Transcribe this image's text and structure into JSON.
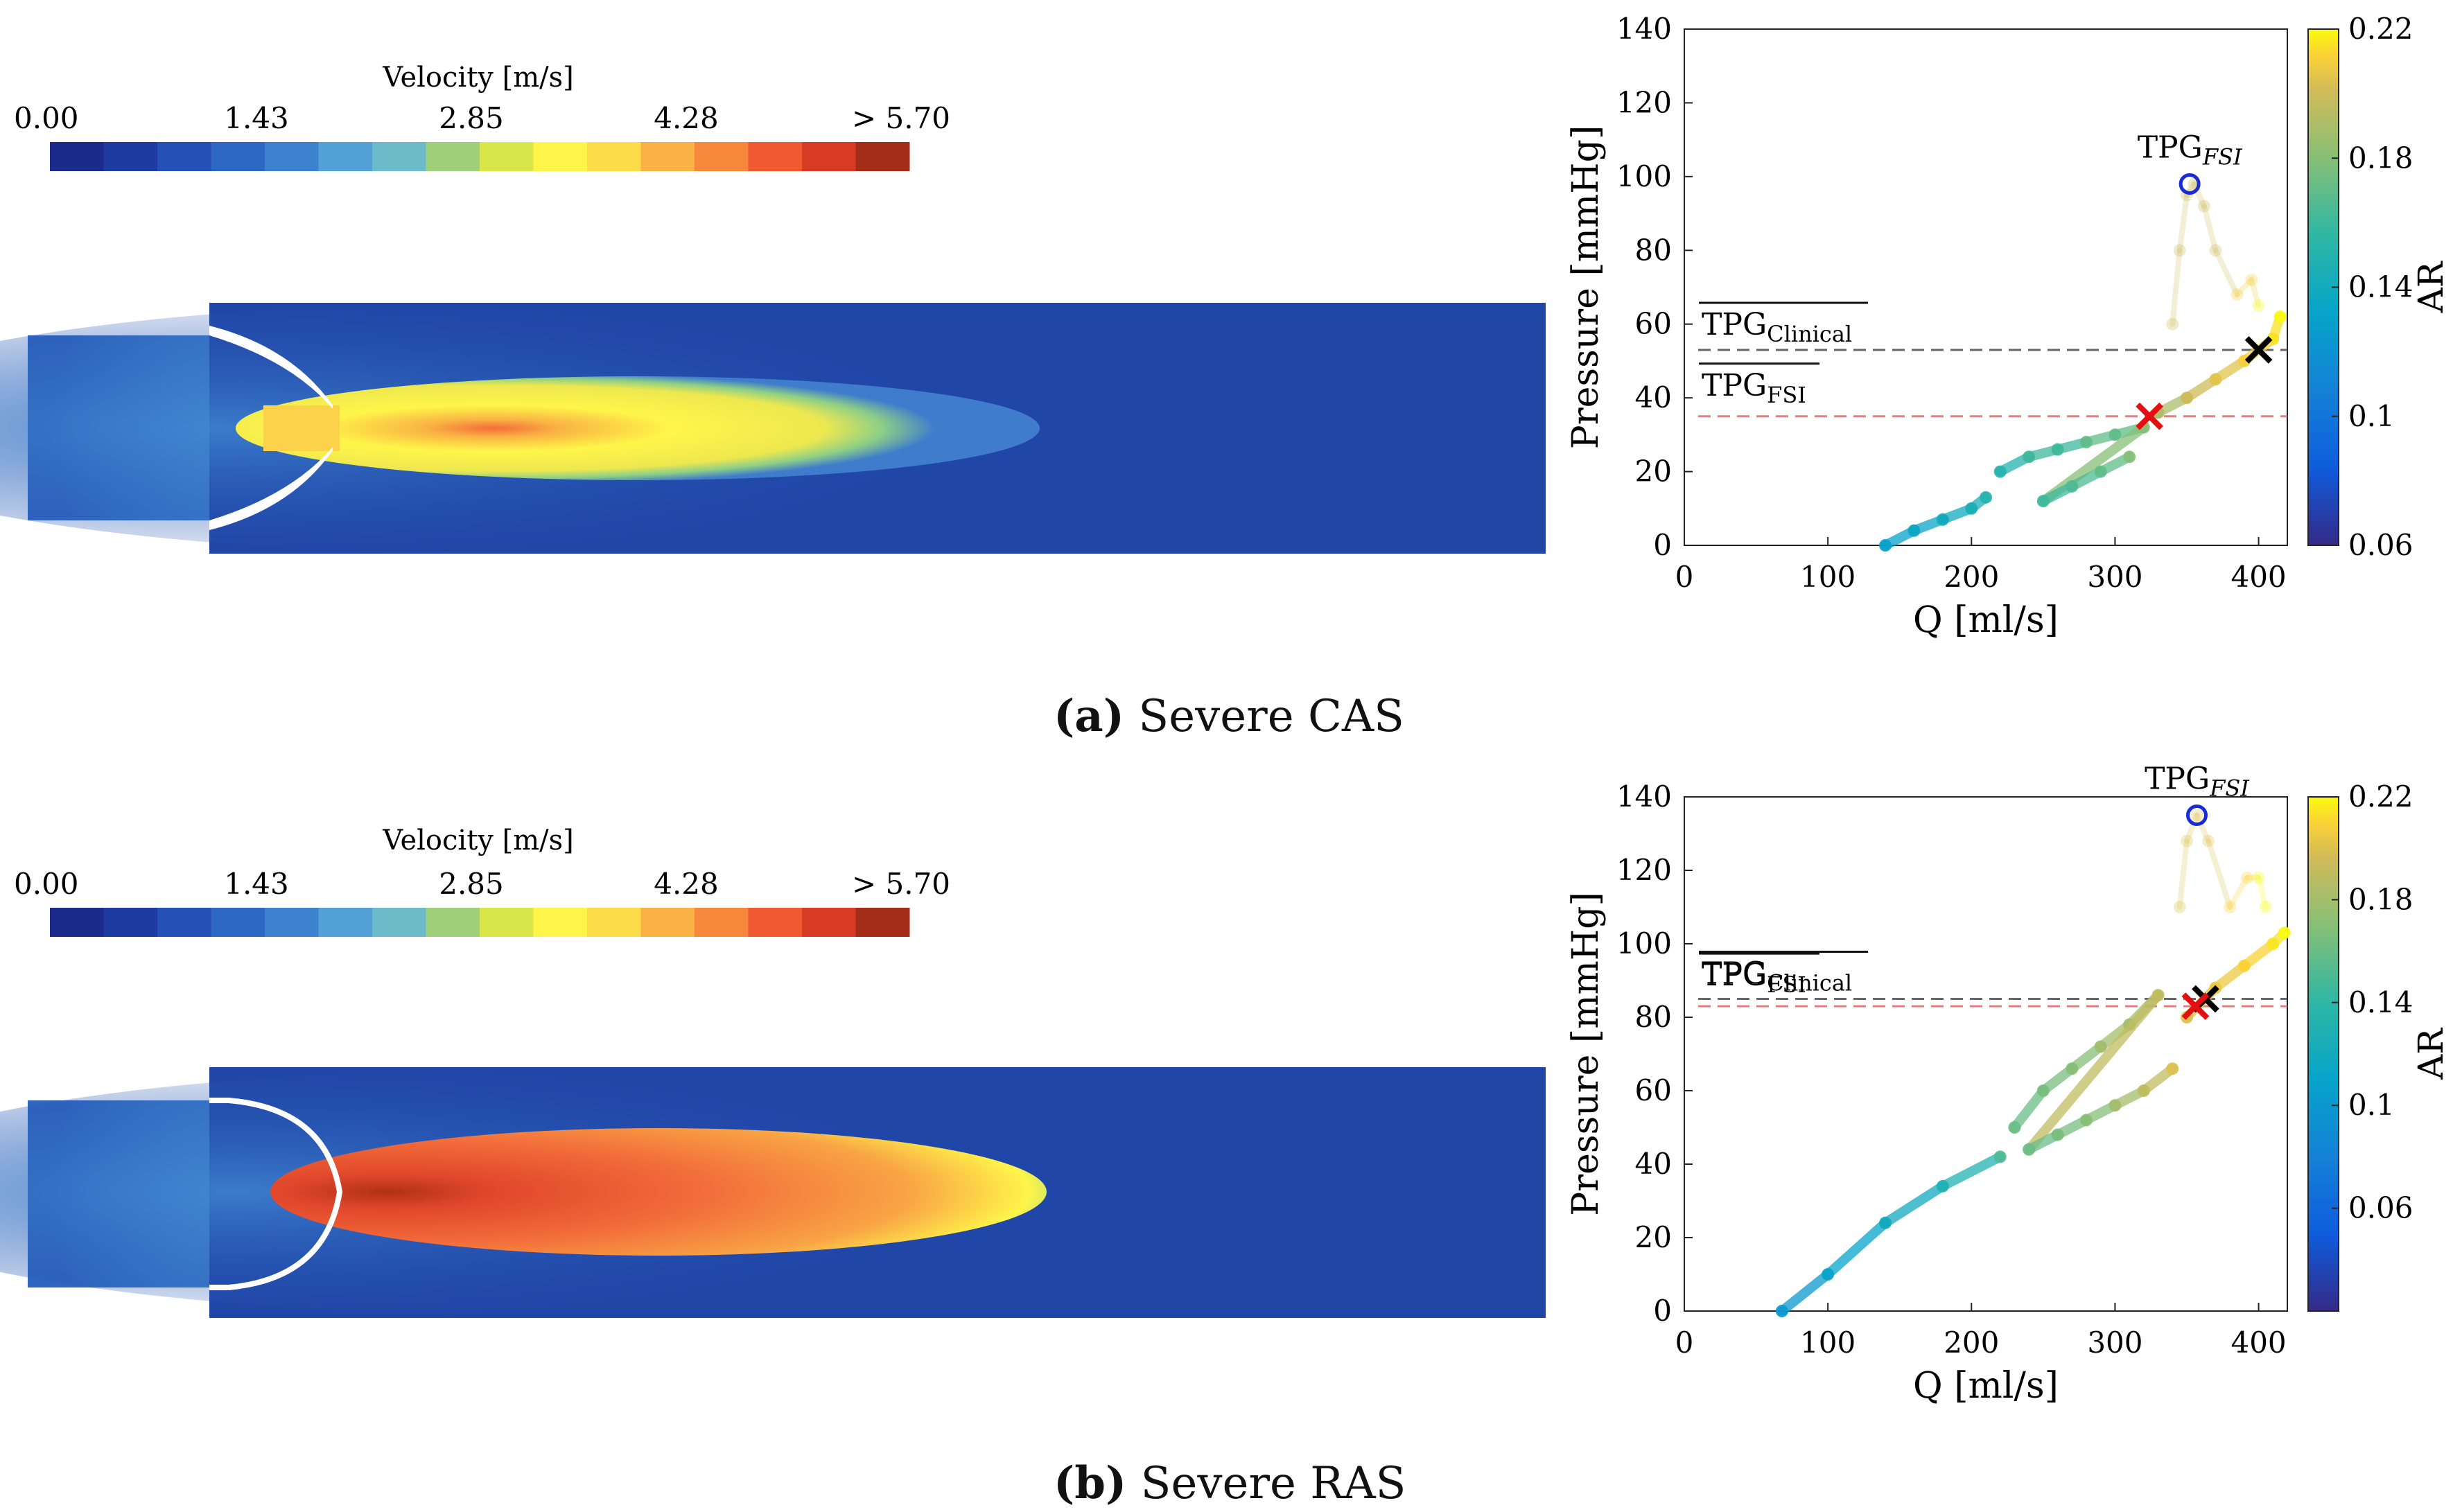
{
  "colorbar": {
    "title": "Velocity [m/s]",
    "ticks": [
      "0.00",
      "1.43",
      "2.85",
      "4.28",
      "> 5.70"
    ],
    "colors": [
      "#1c2a8c",
      "#1f3aa0",
      "#2550b5",
      "#2f68c4",
      "#3d82cf",
      "#52a0d6",
      "#6bbcc8",
      "#9fd07a",
      "#d8e64a",
      "#fff54a",
      "#fcdc48",
      "#f9b243",
      "#f7873b",
      "#f05a31",
      "#d83b24",
      "#a32c18"
    ]
  },
  "panels": [
    {
      "label": "(a)",
      "caption": "Severe CAS",
      "chart_data": {
        "type": "scatter",
        "xlabel": "Q [ml/s]",
        "ylabel": "Pressure [mmHg]",
        "xlim": [
          0,
          420
        ],
        "ylim": [
          0,
          140
        ],
        "xticks": [
          "0",
          "100",
          "200",
          "300",
          "400"
        ],
        "yticks": [
          "0",
          "20",
          "40",
          "60",
          "80",
          "100",
          "120",
          "140"
        ],
        "colorbar_label": "AR",
        "colorbar_ticks": [
          "0.06",
          "0.1",
          "0.14",
          "0.18",
          "0.22"
        ],
        "colorbar_range": [
          0.06,
          0.22
        ],
        "ref_lines": [
          {
            "name": "TPG_Clinical",
            "label_main": "TPG",
            "label_sub": "Clinical",
            "y": 53,
            "color": "#666666"
          },
          {
            "name": "TPG_FSI",
            "label_main": "TPG",
            "label_sub": "FSI",
            "y": 35,
            "color": "#ee7b7b"
          }
        ],
        "markers": [
          {
            "name": "TPG_FSI peak",
            "label_main": "TPG",
            "label_sub": "FSI",
            "x": 352,
            "y": 98,
            "shape": "circle",
            "color": "#1a2bd6"
          },
          {
            "name": "clinical point",
            "x": 400,
            "y": 53,
            "shape": "x",
            "color": "#000000"
          },
          {
            "name": "fsi mean point",
            "x": 324,
            "y": 35,
            "shape": "x",
            "color": "#e21010"
          }
        ],
        "series": [
          {
            "name": "line low",
            "x": [
              140,
              160,
              180,
              200,
              210
            ],
            "y": [
              0,
              4,
              7,
              10,
              13
            ],
            "ar": [
              0.13,
              0.135,
              0.14,
              0.145,
              0.15
            ]
          },
          {
            "name": "cloud",
            "x": [
              220,
              240,
              260,
              280,
              300,
              320,
              250,
              270,
              290,
              310
            ],
            "y": [
              20,
              24,
              26,
              28,
              30,
              32,
              12,
              16,
              20,
              24
            ],
            "ar": [
              0.15,
              0.16,
              0.16,
              0.17,
              0.17,
              0.18,
              0.16,
              0.165,
              0.17,
              0.18
            ]
          },
          {
            "name": "rise",
            "x": [
              330,
              350,
              370,
              390,
              410,
              415
            ],
            "y": [
              36,
              40,
              45,
              50,
              56,
              62
            ],
            "ar": [
              0.19,
              0.2,
              0.205,
              0.21,
              0.215,
              0.22
            ]
          },
          {
            "name": "loop faint",
            "x": [
              340,
              345,
              350,
              355,
              362,
              370,
              385,
              395,
              400
            ],
            "y": [
              60,
              80,
              95,
              98,
              92,
              80,
              68,
              72,
              65
            ],
            "ar": [
              0.2,
              0.2,
              0.2,
              0.2,
              0.2,
              0.2,
              0.21,
              0.21,
              0.22
            ]
          }
        ]
      }
    },
    {
      "label": "(b)",
      "caption": "Severe RAS",
      "chart_data": {
        "type": "scatter",
        "xlabel": "Q [ml/s]",
        "ylabel": "Pressure [mmHg]",
        "xlim": [
          0,
          420
        ],
        "ylim": [
          0,
          140
        ],
        "xticks": [
          "0",
          "100",
          "200",
          "300",
          "400"
        ],
        "yticks": [
          "0",
          "20",
          "40",
          "60",
          "80",
          "100",
          "120",
          "140"
        ],
        "colorbar_label": "AR",
        "colorbar_ticks": [
          "0.06",
          "0.1",
          "0.14",
          "0.18",
          "0.22"
        ],
        "colorbar_range": [
          0.02,
          0.22
        ],
        "ref_lines": [
          {
            "name": "TPG_Clinical",
            "label_main": "TPG",
            "label_sub": "Clinical",
            "y": 85,
            "color": "#666666"
          },
          {
            "name": "TPG_FSI",
            "label_main": "TPG",
            "label_sub": "FSI",
            "y": 83,
            "color": "#ee7b7b"
          }
        ],
        "markers": [
          {
            "name": "TPG_FSI peak",
            "label_main": "TPG",
            "label_sub": "FSI",
            "x": 357,
            "y": 135,
            "shape": "circle",
            "color": "#1a2bd6"
          },
          {
            "name": "clinical point",
            "x": 363,
            "y": 85,
            "shape": "x",
            "color": "#000000"
          },
          {
            "name": "fsi mean point",
            "x": 356,
            "y": 83,
            "shape": "x",
            "color": "#e21010"
          }
        ],
        "series": [
          {
            "name": "line",
            "x": [
              68,
              100,
              140,
              180,
              220
            ],
            "y": [
              0,
              10,
              24,
              34,
              42
            ],
            "ar": [
              0.1,
              0.11,
              0.12,
              0.13,
              0.15
            ]
          },
          {
            "name": "cloud",
            "x": [
              230,
              250,
              270,
              290,
              310,
              330,
              240,
              260,
              280,
              300,
              320,
              340
            ],
            "y": [
              50,
              60,
              66,
              72,
              78,
              86,
              44,
              48,
              52,
              56,
              60,
              66
            ],
            "ar": [
              0.16,
              0.165,
              0.17,
              0.18,
              0.18,
              0.19,
              0.16,
              0.165,
              0.17,
              0.18,
              0.19,
              0.2
            ]
          },
          {
            "name": "rise",
            "x": [
              350,
              370,
              390,
              410,
              418
            ],
            "y": [
              80,
              88,
              94,
              100,
              103
            ],
            "ar": [
              0.2,
              0.205,
              0.21,
              0.215,
              0.22
            ]
          },
          {
            "name": "loop faint",
            "x": [
              345,
              350,
              357,
              365,
              380,
              392,
              400,
              405
            ],
            "y": [
              110,
              128,
              135,
              128,
              110,
              118,
              118,
              110
            ],
            "ar": [
              0.2,
              0.2,
              0.2,
              0.2,
              0.21,
              0.21,
              0.22,
              0.22
            ]
          }
        ]
      }
    }
  ]
}
